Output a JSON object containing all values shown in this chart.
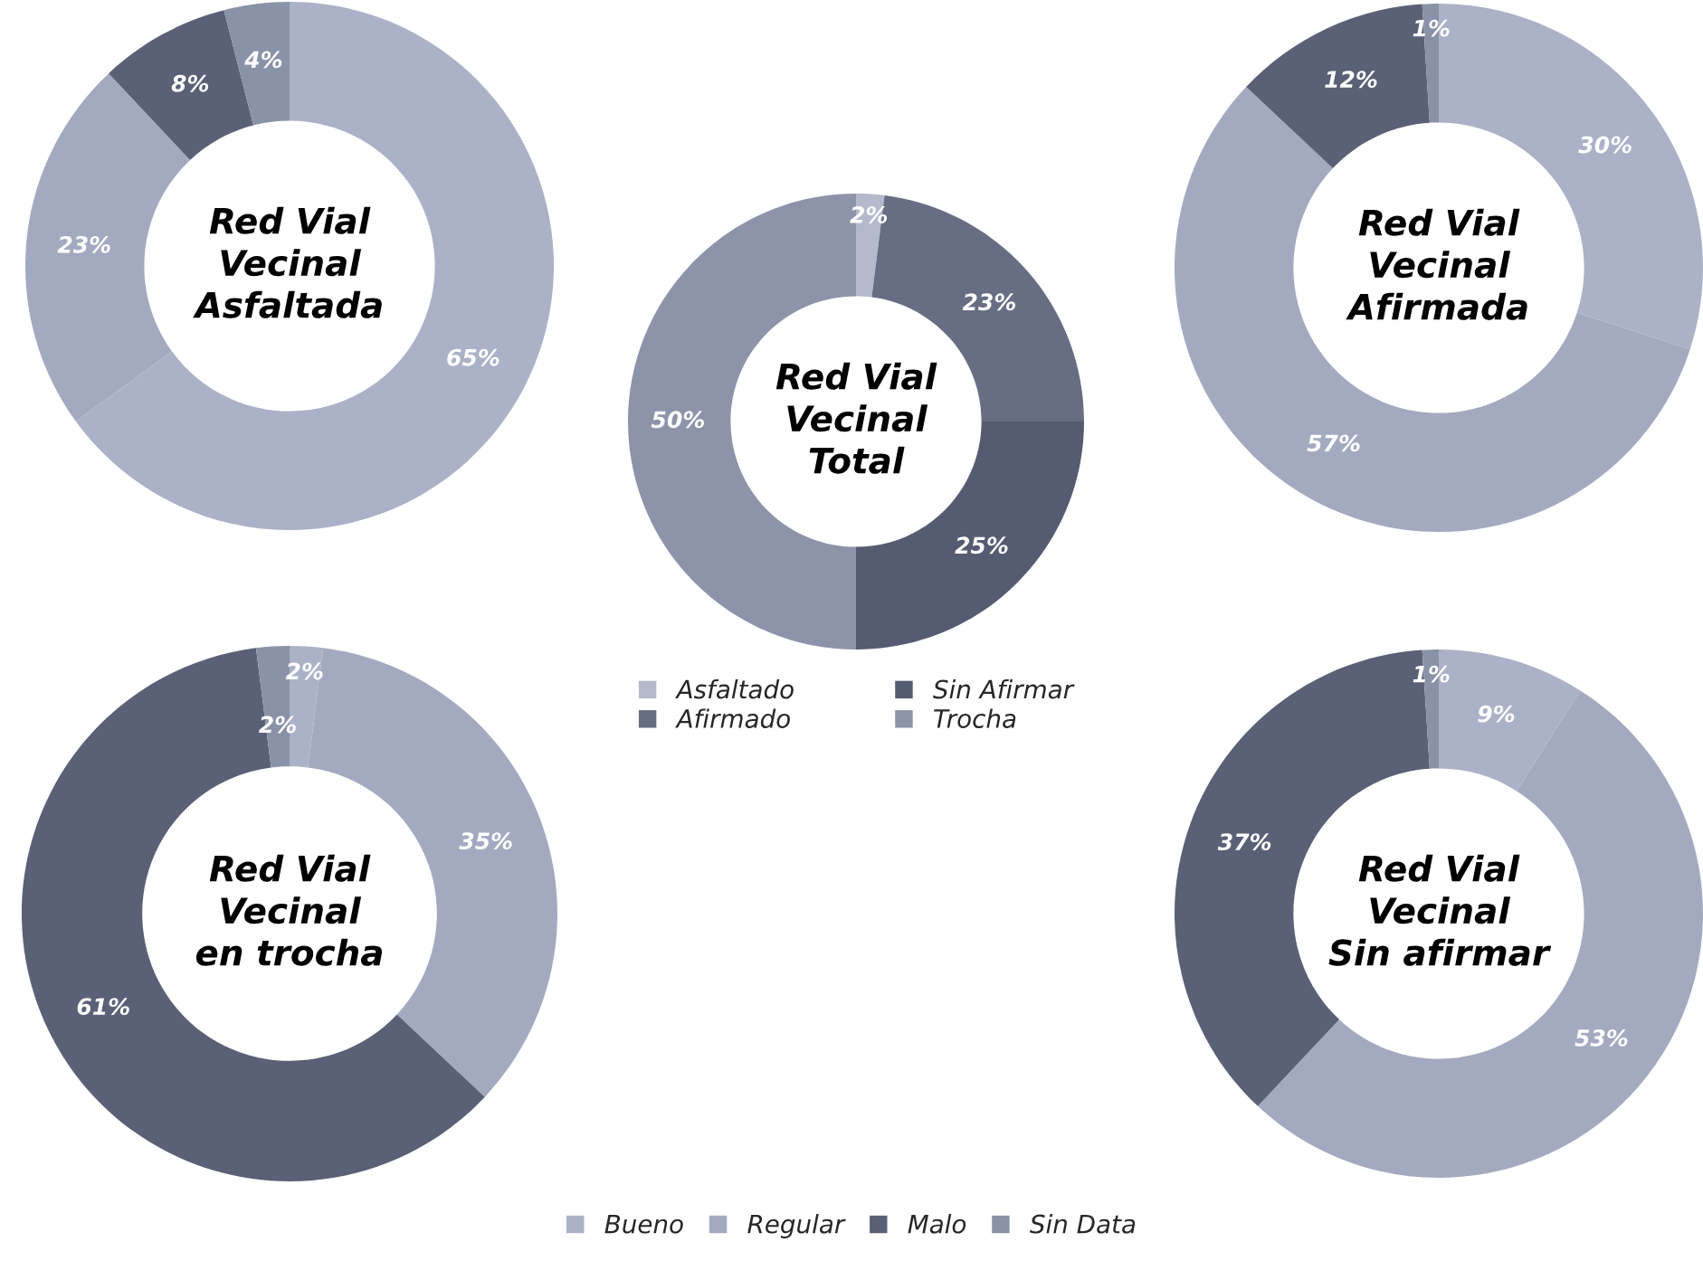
{
  "chart_data": [
    {
      "type": "donut",
      "title": "Red Vial\nVecinal\nAsfaltada",
      "categories": [
        "Bueno",
        "Regular",
        "Malo",
        "Sin Data"
      ],
      "values": [
        65,
        23,
        8,
        4
      ],
      "value_labels": [
        "65%",
        "23%",
        "8%",
        "4%"
      ],
      "colors": [
        "#abb2c7",
        "#a3aac0",
        "#5a6075",
        "#8a92a8"
      ],
      "legend": "bottom"
    },
    {
      "type": "donut",
      "title": "Red Vial\nVecinal\nAfirmada",
      "categories": [
        null,
        null,
        null,
        null
      ],
      "values": [
        30,
        57,
        12,
        1
      ],
      "value_labels": [
        "30%",
        "57%",
        "12%",
        "1%"
      ],
      "colors": [
        "#abb2c7",
        "#a3aac0",
        "#5a6075",
        "#8a92a8"
      ]
    },
    {
      "type": "donut",
      "title": "Red Vial\nVecinal\nTotal",
      "categories": [
        "Asfaltado",
        "Afirmado",
        "Sin Afirmar",
        "Trocha"
      ],
      "values": [
        2,
        23,
        25,
        50
      ],
      "value_labels": [
        "2%",
        "23%",
        "25%",
        "50%"
      ],
      "colors": [
        "#b4bacc",
        "#676d82",
        "#555b70",
        "#8d94aa"
      ],
      "legend": "bottom"
    },
    {
      "type": "donut",
      "title": "Red Vial\nVecinal\nen trocha",
      "categories": [
        null,
        null,
        null,
        null
      ],
      "values": [
        2,
        35,
        61,
        2
      ],
      "value_labels": [
        "2%",
        "35%",
        "61%",
        "2%"
      ],
      "colors": [
        "#abb2c7",
        "#a3aac0",
        "#5a6075",
        "#8a92a8"
      ]
    },
    {
      "type": "donut",
      "title": "Red Vial\nVecinal\nSin afirmar",
      "categories": [
        null,
        null,
        null,
        null
      ],
      "values": [
        9,
        53,
        37,
        1
      ],
      "value_labels": [
        "9%",
        "53%",
        "37%",
        "1%"
      ],
      "colors": [
        "#abb2c7",
        "#a3aac0",
        "#5a6075",
        "#8a92a8"
      ]
    }
  ]
}
